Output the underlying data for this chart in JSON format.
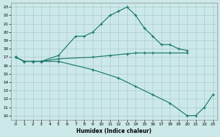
{
  "xlabel": "Humidex (Indice chaleur)",
  "background_color": "#cce8e8",
  "line_color": "#1a7a6e",
  "xlim": [
    -0.5,
    23.5
  ],
  "ylim": [
    9.5,
    23.5
  ],
  "xticks": [
    0,
    1,
    2,
    3,
    4,
    5,
    6,
    7,
    8,
    9,
    10,
    11,
    12,
    13,
    14,
    15,
    16,
    17,
    18,
    19,
    20,
    21,
    22,
    23
  ],
  "yticks": [
    10,
    11,
    12,
    13,
    14,
    15,
    16,
    17,
    18,
    19,
    20,
    21,
    22,
    23
  ],
  "line1_x": [
    0,
    1,
    2,
    3,
    5,
    7,
    8,
    9,
    10,
    11,
    12,
    13,
    14,
    15,
    16,
    17,
    18,
    19,
    20
  ],
  "line1_y": [
    17,
    16.5,
    16.5,
    16.5,
    17.2,
    19.5,
    19.5,
    20.0,
    21.0,
    22.0,
    22.5,
    23.0,
    22.0,
    20.5,
    19.5,
    18.5,
    18.5,
    18.0,
    17.8
  ],
  "line2_x": [
    0,
    1,
    2,
    3,
    5,
    9,
    11,
    13,
    14,
    15,
    16,
    18,
    20
  ],
  "line2_y": [
    17,
    16.5,
    16.5,
    16.5,
    16.8,
    17.0,
    17.2,
    17.4,
    17.5,
    17.5,
    17.5,
    17.5,
    17.5
  ],
  "line3_x": [
    0,
    1,
    2,
    3,
    5,
    9,
    12,
    14,
    16,
    18,
    20,
    21,
    22,
    23
  ],
  "line3_y": [
    17,
    16.5,
    16.5,
    16.5,
    16.5,
    15.5,
    14.5,
    13.5,
    12.5,
    11.5,
    10.0,
    10.0,
    11.0,
    12.5
  ]
}
